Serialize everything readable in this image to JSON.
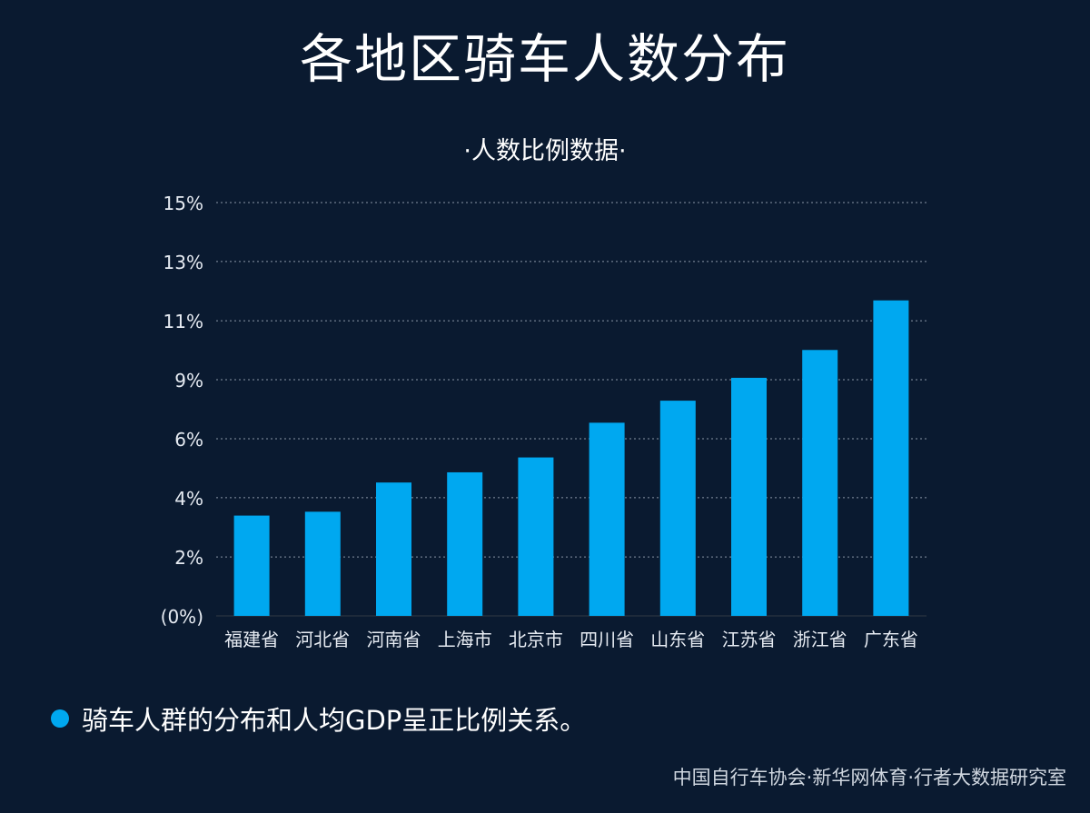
{
  "title": "各地区骑车人数分布",
  "subtitle": "·人数比例数据·",
  "note": "骑车人群的分布和人均GDP呈正比例关系。",
  "source": "中国自行车协会·新华网体育·行者大数据研究室",
  "colors": {
    "background": "#0a1a30",
    "bar": "#00a8f0",
    "grid": "#8a96a6",
    "text": "#ffffff",
    "axis_text": "#e6ebf2"
  },
  "chart_data": {
    "type": "bar",
    "title": "·人数比例数据·",
    "categories": [
      "福建省",
      "河北省",
      "河南省",
      "上海市",
      "北京市",
      "四川省",
      "山东省",
      "江苏省",
      "浙江省",
      "广东省"
    ],
    "values": [
      3.64,
      3.78,
      4.84,
      5.21,
      5.75,
      7.01,
      7.81,
      8.64,
      9.65,
      11.45
    ],
    "ylim": [
      0,
      15
    ],
    "yticks": [
      0,
      2.14,
      4.29,
      6.43,
      8.57,
      10.71,
      12.86,
      15
    ],
    "ytick_labels": [
      "(0%)",
      "2%",
      "4%",
      "6%",
      "9%",
      "11%",
      "13%",
      "15%"
    ],
    "grid": "horizontal-dotted",
    "legend": "none",
    "xlabel": "",
    "ylabel": ""
  }
}
